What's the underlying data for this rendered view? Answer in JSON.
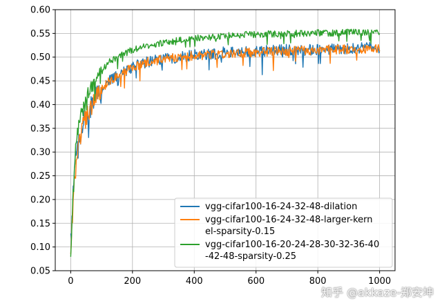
{
  "chart_data": {
    "type": "line",
    "title": "",
    "xlabel": "",
    "ylabel": "",
    "xlim": [
      -50,
      1050
    ],
    "ylim": [
      0.05,
      0.6
    ],
    "xticks": [
      0,
      200,
      400,
      600,
      800,
      1000
    ],
    "yticks": [
      0.05,
      0.1,
      0.15,
      0.2,
      0.25,
      0.3,
      0.35,
      0.4,
      0.45,
      0.5,
      0.55,
      0.6
    ],
    "xtick_labels": [
      "0",
      "200",
      "400",
      "600",
      "800",
      "1000"
    ],
    "ytick_labels": [
      "0.05",
      "0.10",
      "0.15",
      "0.20",
      "0.25",
      "0.30",
      "0.35",
      "0.40",
      "0.45",
      "0.50",
      "0.55",
      "0.60"
    ],
    "grid": true,
    "legend_position": "bottom-right",
    "series": [
      {
        "name": "vgg-cifar100-16-24-32-48-dilation",
        "legend_lines": [
          "vgg-cifar100-16-24-32-48-dilation"
        ],
        "color": "#1f77b4",
        "x": [
          0,
          5,
          10,
          15,
          20,
          30,
          40,
          50,
          60,
          80,
          100,
          125,
          150,
          175,
          200,
          250,
          300,
          350,
          400,
          450,
          500,
          550,
          600,
          650,
          700,
          750,
          800,
          850,
          900,
          950,
          1000
        ],
        "y": [
          0.11,
          0.17,
          0.23,
          0.27,
          0.3,
          0.33,
          0.36,
          0.37,
          0.39,
          0.41,
          0.43,
          0.45,
          0.46,
          0.47,
          0.48,
          0.49,
          0.495,
          0.5,
          0.505,
          0.505,
          0.51,
          0.51,
          0.512,
          0.513,
          0.515,
          0.515,
          0.516,
          0.517,
          0.518,
          0.519,
          0.52
        ],
        "noise": 0.012
      },
      {
        "name": "vgg-cifar100-16-24-32-48-larger-kernel-sparsity-0.15",
        "legend_lines": [
          "vgg-cifar100-16-24-32-48-larger-kern",
          "el-sparsity-0.15"
        ],
        "color": "#ff7f0e",
        "x": [
          0,
          5,
          10,
          15,
          20,
          30,
          40,
          50,
          60,
          80,
          100,
          125,
          150,
          175,
          200,
          250,
          300,
          350,
          400,
          450,
          500,
          550,
          600,
          650,
          700,
          750,
          800,
          850,
          900,
          950,
          1000
        ],
        "y": [
          0.1,
          0.16,
          0.22,
          0.26,
          0.29,
          0.33,
          0.36,
          0.37,
          0.39,
          0.41,
          0.43,
          0.45,
          0.46,
          0.47,
          0.48,
          0.49,
          0.495,
          0.5,
          0.503,
          0.505,
          0.508,
          0.51,
          0.51,
          0.512,
          0.513,
          0.514,
          0.515,
          0.516,
          0.517,
          0.518,
          0.518
        ],
        "noise": 0.01
      },
      {
        "name": "vgg-cifar100-16-20-24-28-30-32-36-40-42-48-sparsity-0.25",
        "legend_lines": [
          "vgg-cifar100-16-20-24-28-30-32-36-40",
          "-42-48-sparsity-0.25"
        ],
        "color": "#2ca02c",
        "x": [
          0,
          5,
          10,
          15,
          20,
          30,
          40,
          50,
          60,
          80,
          100,
          125,
          150,
          175,
          200,
          250,
          300,
          350,
          400,
          450,
          500,
          550,
          600,
          650,
          700,
          750,
          800,
          850,
          900,
          950,
          1000
        ],
        "y": [
          0.08,
          0.17,
          0.25,
          0.3,
          0.33,
          0.37,
          0.39,
          0.41,
          0.43,
          0.45,
          0.47,
          0.49,
          0.5,
          0.51,
          0.515,
          0.525,
          0.53,
          0.535,
          0.54,
          0.542,
          0.545,
          0.547,
          0.548,
          0.549,
          0.55,
          0.55,
          0.551,
          0.551,
          0.552,
          0.552,
          0.553
        ],
        "noise": 0.007
      }
    ]
  },
  "watermark": "知乎 @akkaze-郑安坤"
}
